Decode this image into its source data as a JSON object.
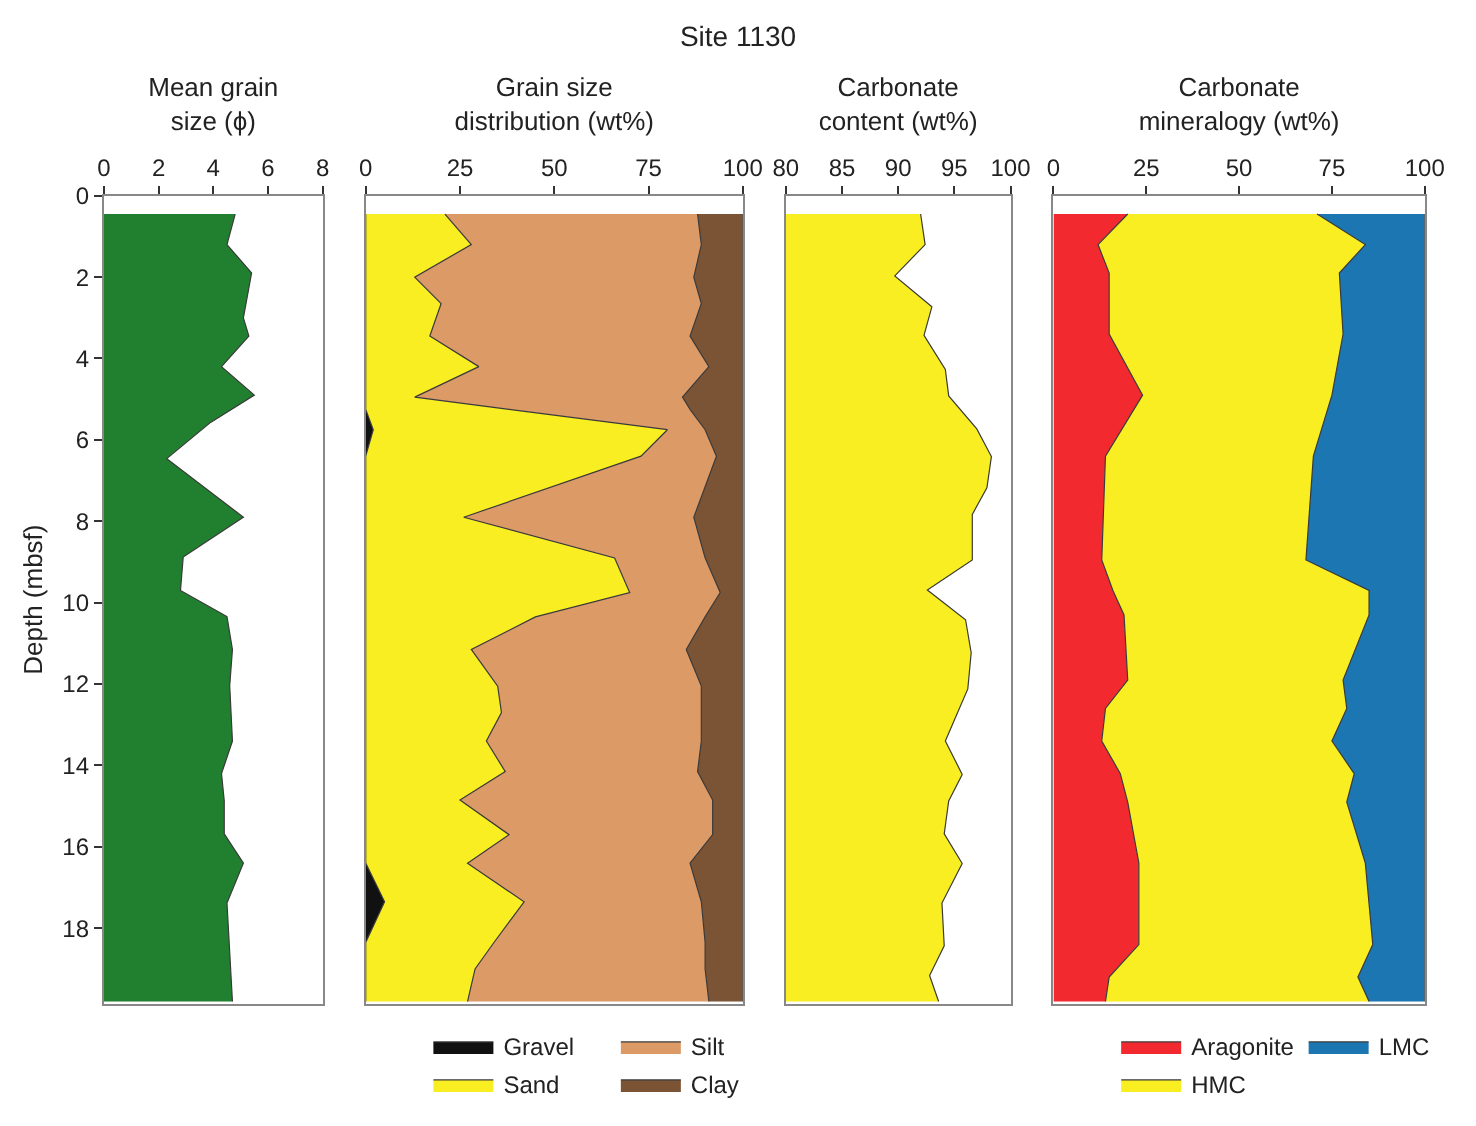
{
  "chart_data": [
    {
      "type": "area",
      "orientation": "horizontal",
      "xlabel": "Mean grain\nsize (ϕ)",
      "ylabel": "Depth (mbsf)",
      "x": [
        0.45,
        1.2,
        1.9,
        3.0,
        3.45,
        4.2,
        4.9,
        5.57,
        6.46,
        7.9,
        8.88,
        9.7,
        10.34,
        11.15,
        12.04,
        13.4,
        14.2,
        14.87,
        15.68,
        16.4,
        17.38,
        19.8
      ],
      "values": [
        4.8,
        4.5,
        5.4,
        5.1,
        5.3,
        4.3,
        5.5,
        3.9,
        2.3,
        5.1,
        2.9,
        2.8,
        4.5,
        4.7,
        4.6,
        4.7,
        4.3,
        4.4,
        4.4,
        5.1,
        4.5,
        4.7
      ],
      "color": "#21802f",
      "xlim": [
        0,
        8
      ],
      "xticks": [
        0,
        2,
        4,
        6,
        8
      ],
      "ylim": [
        19.85,
        0
      ],
      "yticks": [
        0,
        2,
        4,
        6,
        8,
        10,
        12,
        14,
        16,
        18
      ],
      "legend": false
    },
    {
      "type": "area",
      "orientation": "horizontal",
      "stacked": true,
      "title": "Site 1130",
      "xlabel": "Grain size\ndistribution (wt%)",
      "tick_labels": "x",
      "legend": "bottom",
      "x": [
        0.45,
        1.2,
        2.0,
        2.65,
        3.45,
        4.2,
        4.95,
        5.25,
        5.75,
        6.4,
        7.9,
        8.9,
        9.75,
        10.35,
        11.15,
        12.05,
        12.7,
        13.4,
        14.15,
        14.85,
        15.7,
        16.4,
        17.35,
        18.35,
        19.0,
        19.8
      ],
      "series": [
        {
          "name": "Gravel",
          "color": "#111111",
          "values": [
            0,
            0,
            0,
            0,
            0,
            0,
            0,
            0,
            2,
            0,
            0,
            0,
            0,
            0,
            0,
            0,
            0,
            0,
            0,
            0,
            0,
            0,
            5,
            0,
            0,
            0
          ]
        },
        {
          "name": "Sand",
          "color": "#f9ee22",
          "values": [
            21,
            28,
            13,
            20,
            17,
            30,
            13,
            38,
            78,
            73,
            26,
            66,
            70,
            45,
            28,
            35,
            36,
            32,
            37,
            25,
            38,
            27,
            37,
            34,
            29,
            27
          ]
        },
        {
          "name": "Silt",
          "color": "#dc9a66",
          "values": [
            67,
            61,
            74,
            69,
            69,
            61,
            71,
            48,
            10,
            20,
            61,
            24,
            24,
            45,
            57,
            54,
            53,
            57,
            51,
            67,
            54,
            59,
            47,
            56,
            61,
            64
          ]
        },
        {
          "name": "Clay",
          "color": "#7b5335",
          "values": [
            12,
            11,
            13,
            11,
            14,
            9,
            16,
            14,
            10,
            7,
            13,
            10,
            6,
            10,
            15,
            11,
            11,
            11,
            12,
            8,
            8,
            14,
            11,
            10,
            10,
            9
          ]
        }
      ],
      "xlim": [
        0,
        100
      ],
      "xticks": [
        0,
        25,
        50,
        75,
        100
      ],
      "ylim": [
        19.85,
        0
      ],
      "yticks": [
        0,
        2,
        4,
        6,
        8,
        10,
        12,
        14,
        16,
        18
      ]
    },
    {
      "type": "area",
      "orientation": "horizontal",
      "xlabel": "Carbonate\ncontent (wt%)",
      "tick_labels": "x",
      "legend": false,
      "x": [
        0.45,
        1.2,
        1.97,
        2.73,
        3.43,
        4.27,
        4.92,
        5.73,
        6.41,
        7.18,
        7.83,
        8.95,
        9.69,
        10.42,
        11.23,
        12.12,
        13.4,
        14.22,
        14.87,
        15.68,
        16.41,
        17.38,
        18.43,
        19.16,
        19.8
      ],
      "values": [
        92.0,
        92.4,
        89.7,
        93.0,
        92.3,
        94.2,
        94.5,
        97.0,
        98.3,
        97.9,
        96.6,
        96.6,
        92.6,
        96.0,
        96.5,
        96.2,
        94.2,
        95.7,
        94.5,
        94.1,
        95.7,
        93.9,
        94.1,
        92.8,
        93.6
      ],
      "color": "#f9ee22",
      "xlim": [
        80,
        100
      ],
      "xticks": [
        80,
        85,
        90,
        95,
        100
      ],
      "ylim": [
        19.85,
        0
      ],
      "yticks": [
        0,
        2,
        4,
        6,
        8,
        10,
        12,
        14,
        16,
        18
      ]
    },
    {
      "type": "area",
      "orientation": "horizontal",
      "stacked": true,
      "xlabel": "Carbonate\nmineralogy (wt%)",
      "tick_labels": "x",
      "legend": "bottom",
      "x": [
        0.45,
        1.2,
        1.9,
        3.4,
        4.9,
        6.4,
        8.95,
        9.7,
        10.3,
        11.9,
        12.6,
        13.4,
        14.2,
        14.9,
        16.4,
        18.4,
        19.2,
        19.8
      ],
      "series": [
        {
          "name": "Aragonite",
          "color": "#f22a30",
          "values": [
            20,
            12,
            15,
            15,
            24,
            14,
            13,
            16,
            19,
            20,
            14,
            13,
            18,
            20,
            23,
            23,
            15,
            14
          ]
        },
        {
          "name": "HMC",
          "color": "#f9ee22",
          "values": [
            51,
            72,
            62,
            63,
            51,
            56,
            55,
            69,
            66,
            58,
            65,
            62,
            63,
            59,
            61,
            63,
            67,
            71
          ]
        },
        {
          "name": "LMC",
          "color": "#1b76b2",
          "values": [
            29,
            16,
            23,
            22,
            25,
            30,
            32,
            15,
            15,
            22,
            21,
            25,
            19,
            21,
            16,
            14,
            18,
            15
          ]
        }
      ],
      "xlim": [
        0,
        100
      ],
      "xticks": [
        0,
        25,
        50,
        75,
        100
      ],
      "ylim": [
        19.85,
        0
      ],
      "yticks": [
        0,
        2,
        4,
        6,
        8,
        10,
        12,
        14,
        16,
        18
      ]
    }
  ]
}
